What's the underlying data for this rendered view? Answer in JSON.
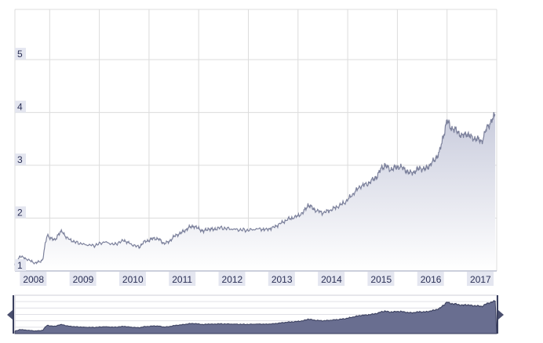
{
  "chart_data": {
    "type": "area",
    "title": "",
    "xlabel": "",
    "ylabel": "",
    "xlim": [
      2007.9,
      2017.6
    ],
    "ylim": [
      1,
      5.95
    ],
    "grid": true,
    "legend": "none",
    "y_ticks": [
      1,
      2,
      3,
      4,
      5
    ],
    "y_tick_labels": [
      "1",
      "2",
      "3",
      "4",
      "5"
    ],
    "x_tick_labels": [
      "2008",
      "2009",
      "2010",
      "2011",
      "2012",
      "2013",
      "2014",
      "2015",
      "2016",
      "2017"
    ],
    "series": [
      {
        "x": [
          2007.9,
          2008.0,
          2008.15,
          2008.3,
          2008.42,
          2008.46,
          2008.5,
          2008.55,
          2008.62,
          2008.7,
          2008.78,
          2008.85,
          2008.95,
          2009.1,
          2009.3,
          2009.5,
          2009.7,
          2009.9,
          2010.1,
          2010.2,
          2010.4,
          2010.5,
          2010.6,
          2010.7,
          2010.8,
          2010.9,
          2011.0,
          2011.1,
          2011.2,
          2011.3,
          2011.4,
          2011.5,
          2011.6,
          2011.7,
          2011.8,
          2011.9,
          2012.0,
          2012.2,
          2012.4,
          2012.6,
          2012.8,
          2012.95,
          2013.1,
          2013.25,
          2013.4,
          2013.55,
          2013.7,
          2013.8,
          2013.85,
          2013.95,
          2014.1,
          2014.25,
          2014.4,
          2014.55,
          2014.7,
          2014.85,
          2015.0,
          2015.1,
          2015.2,
          2015.28,
          2015.35,
          2015.45,
          2015.55,
          2015.65,
          2015.75,
          2015.85,
          2015.95,
          2016.05,
          2016.15,
          2016.25,
          2016.35,
          2016.45,
          2016.5,
          2016.55,
          2016.6,
          2016.65,
          2016.7,
          2016.8,
          2016.9,
          2017.0,
          2017.1,
          2017.2,
          2017.3,
          2017.4,
          2017.5,
          2017.57
        ],
        "values": [
          1.12,
          1.28,
          1.22,
          1.15,
          1.18,
          1.22,
          1.45,
          1.68,
          1.62,
          1.58,
          1.7,
          1.75,
          1.62,
          1.55,
          1.5,
          1.48,
          1.55,
          1.5,
          1.58,
          1.52,
          1.45,
          1.55,
          1.58,
          1.62,
          1.6,
          1.52,
          1.55,
          1.65,
          1.7,
          1.75,
          1.82,
          1.85,
          1.8,
          1.75,
          1.8,
          1.78,
          1.82,
          1.8,
          1.78,
          1.77,
          1.8,
          1.78,
          1.82,
          1.9,
          1.98,
          2.02,
          2.1,
          2.25,
          2.22,
          2.15,
          2.1,
          2.15,
          2.22,
          2.3,
          2.45,
          2.6,
          2.65,
          2.72,
          2.8,
          2.95,
          3.0,
          2.92,
          2.95,
          2.98,
          2.92,
          2.85,
          2.88,
          2.95,
          2.92,
          3.0,
          3.1,
          3.25,
          3.45,
          3.65,
          3.85,
          3.75,
          3.7,
          3.65,
          3.55,
          3.6,
          3.52,
          3.5,
          3.45,
          3.7,
          3.85,
          3.95
        ]
      }
    ]
  },
  "navigator": {
    "left_handle": "left-arrow-icon",
    "right_handle": "right-arrow-icon"
  },
  "colors": {
    "line": "#7c819c",
    "fill_top": "#c8cbdc",
    "fill_bottom": "#ffffff",
    "nav_fill": "#696e90",
    "nav_outline": "#3a3f5e",
    "tick_label_bg": "#e4e6f0",
    "tick_label_text": "#2a2f55"
  }
}
